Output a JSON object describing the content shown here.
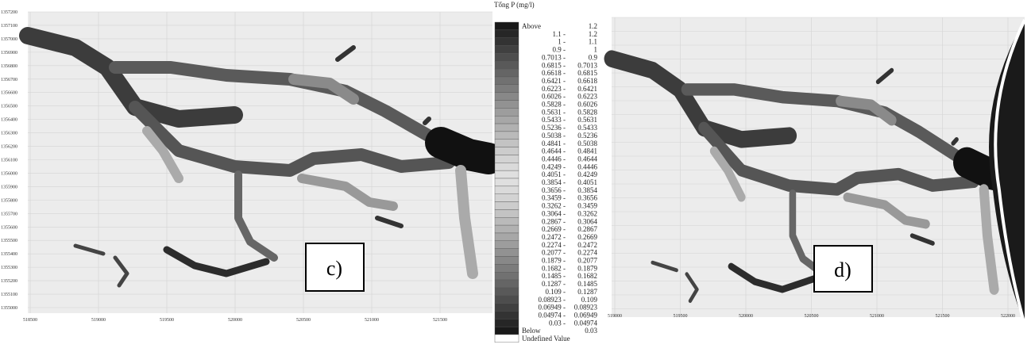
{
  "panels": [
    {
      "label": "c)",
      "xticks": [
        "518500",
        "519000",
        "519500",
        "520000",
        "520500",
        "521000",
        "521500"
      ],
      "yticks": [
        "1357200",
        "1357100",
        "1357000",
        "1356900",
        "1356800",
        "1356700",
        "1356600",
        "1356500",
        "1356400",
        "1356300",
        "1356200",
        "1356100",
        "1356000",
        "1355900",
        "1355800",
        "1355700",
        "1355600",
        "1355500",
        "1355400",
        "1355300",
        "1355200",
        "1355100",
        "1355000"
      ]
    },
    {
      "label": "d)",
      "xticks": [
        "519000",
        "519500",
        "520000",
        "520500",
        "521000",
        "521500",
        "522000"
      ]
    }
  ],
  "legend": {
    "title": "Tổng P (mg/l)",
    "entries": [
      [
        "Above",
        "1.2"
      ],
      [
        "1.1 -",
        "1.2"
      ],
      [
        "1 -",
        "1.1"
      ],
      [
        "0.9 -",
        "1"
      ],
      [
        "0.7013 -",
        "0.9"
      ],
      [
        "0.6815 -",
        "0.7013"
      ],
      [
        "0.6618 -",
        "0.6815"
      ],
      [
        "0.6421 -",
        "0.6618"
      ],
      [
        "0.6223 -",
        "0.6421"
      ],
      [
        "0.6026 -",
        "0.6223"
      ],
      [
        "0.5828 -",
        "0.6026"
      ],
      [
        "0.5631 -",
        "0.5828"
      ],
      [
        "0.5433 -",
        "0.5631"
      ],
      [
        "0.5236 -",
        "0.5433"
      ],
      [
        "0.5038 -",
        "0.5236"
      ],
      [
        "0.4841 -",
        "0.5038"
      ],
      [
        "0.4644 -",
        "0.4841"
      ],
      [
        "0.4446 -",
        "0.4644"
      ],
      [
        "0.4249 -",
        "0.4446"
      ],
      [
        "0.4051 -",
        "0.4249"
      ],
      [
        "0.3854 -",
        "0.4051"
      ],
      [
        "0.3656 -",
        "0.3854"
      ],
      [
        "0.3459 -",
        "0.3656"
      ],
      [
        "0.3262 -",
        "0.3459"
      ],
      [
        "0.3064 -",
        "0.3262"
      ],
      [
        "0.2867 -",
        "0.3064"
      ],
      [
        "0.2669 -",
        "0.2867"
      ],
      [
        "0.2472 -",
        "0.2669"
      ],
      [
        "0.2274 -",
        "0.2472"
      ],
      [
        "0.2077 -",
        "0.2274"
      ],
      [
        "0.1879 -",
        "0.2077"
      ],
      [
        "0.1682 -",
        "0.1879"
      ],
      [
        "0.1485 -",
        "0.1682"
      ],
      [
        "0.1287 -",
        "0.1485"
      ],
      [
        "0.109 -",
        "0.1287"
      ],
      [
        "0.08923 -",
        "0.109"
      ],
      [
        "0.06949 -",
        "0.08923"
      ],
      [
        "0.04974 -",
        "0.06949"
      ],
      [
        "0.03 -",
        "0.04974"
      ],
      [
        "Below",
        "0.03"
      ],
      [
        "Undefined Value",
        ""
      ]
    ]
  }
}
